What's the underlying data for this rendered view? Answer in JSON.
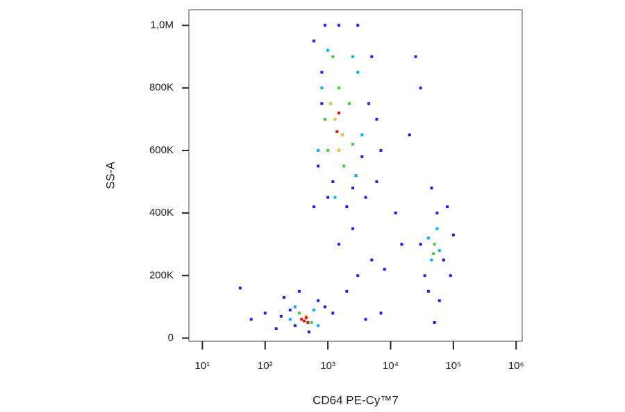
{
  "chart_data": {
    "type": "scatter",
    "xlabel": "CD64 PE-Cy™7",
    "ylabel": "SS-A",
    "xscale": "log",
    "xlim": [
      6.1,
      1250000
    ],
    "ylim": [
      -10000,
      1050000
    ],
    "xticks": [
      {
        "value": 10,
        "label": "10¹"
      },
      {
        "value": 100,
        "label": "10²"
      },
      {
        "value": 1000,
        "label": "10³"
      },
      {
        "value": 10000,
        "label": "10⁴"
      },
      {
        "value": 100000,
        "label": "10⁵"
      },
      {
        "value": 1000000,
        "label": "10⁶"
      }
    ],
    "yticks": [
      0,
      {
        "value": 200000,
        "label": "200K"
      },
      {
        "value": 400000,
        "label": "400K"
      },
      {
        "value": 600000,
        "label": "600K"
      },
      {
        "value": 800000,
        "label": "800K"
      },
      {
        "value": 1000000,
        "label": "1,0M"
      }
    ],
    "series": [
      {
        "color": "#1c1cff",
        "x": [
          300,
          250,
          180,
          150,
          700,
          900,
          350,
          1200,
          2000,
          3000,
          5000,
          8000,
          1500,
          2500,
          600,
          700,
          800,
          600,
          900,
          3000,
          5000,
          6000,
          7000,
          4000,
          2000,
          1000,
          12000,
          20000,
          30000,
          35000,
          40000,
          60000,
          70000,
          80000,
          45000,
          55000,
          30000,
          100000,
          90000,
          100,
          60,
          40,
          7000,
          4000,
          15000,
          200,
          500,
          6000,
          1500,
          800,
          4500,
          3500,
          1200,
          2500,
          50000,
          25000
        ],
        "values": [
          40000,
          90000,
          70000,
          30000,
          120000,
          100000,
          150000,
          80000,
          150000,
          200000,
          250000,
          220000,
          300000,
          350000,
          420000,
          550000,
          750000,
          950000,
          1000000,
          1000000,
          900000,
          700000,
          600000,
          450000,
          420000,
          450000,
          400000,
          650000,
          800000,
          200000,
          150000,
          120000,
          250000,
          420000,
          480000,
          400000,
          300000,
          330000,
          200000,
          80000,
          60000,
          160000,
          80000,
          60000,
          300000,
          130000,
          20000,
          500000,
          1000000,
          850000,
          750000,
          580000,
          500000,
          480000,
          50000,
          900000
        ]
      },
      {
        "color": "#00b0ff",
        "x": [
          700,
          800,
          3000,
          3500,
          2500,
          1000,
          1300,
          2800,
          45000,
          55000,
          40000,
          60000,
          250,
          600,
          300,
          700
        ],
        "values": [
          600000,
          800000,
          850000,
          650000,
          900000,
          920000,
          450000,
          520000,
          250000,
          350000,
          320000,
          280000,
          60000,
          90000,
          100000,
          40000
        ]
      },
      {
        "color": "#3cd040",
        "x": [
          1000,
          1500,
          2200,
          1800,
          900,
          2500,
          1200,
          50000,
          48000,
          350,
          550
        ],
        "values": [
          600000,
          800000,
          750000,
          550000,
          700000,
          620000,
          900000,
          300000,
          270000,
          80000,
          50000
        ]
      },
      {
        "color": "#f0c020",
        "x": [
          1300,
          1700,
          1500,
          1100,
          450
        ],
        "values": [
          700000,
          650000,
          600000,
          750000,
          70000
        ]
      },
      {
        "color": "#e81010",
        "x": [
          1500,
          1400,
          420,
          380,
          480,
          450
        ],
        "values": [
          720000,
          660000,
          55000,
          60000,
          50000,
          65000
        ]
      }
    ]
  }
}
